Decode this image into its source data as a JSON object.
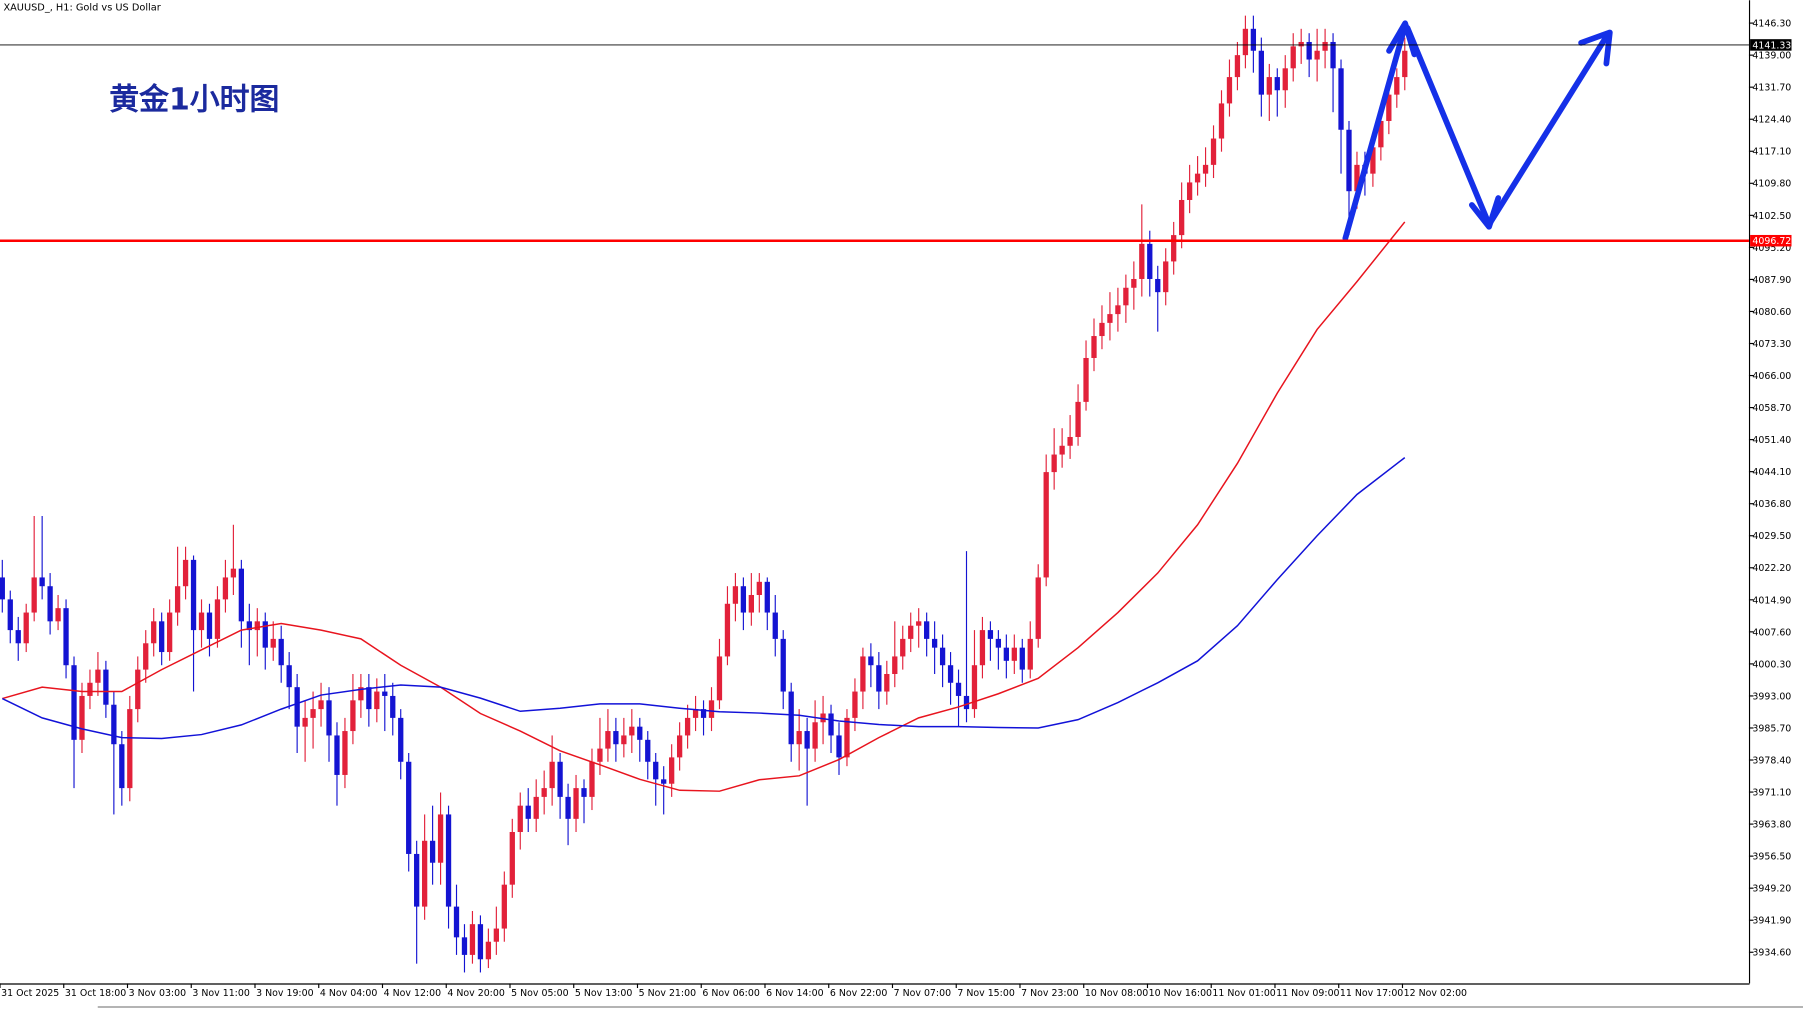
{
  "chart_data": {
    "type": "candlestick",
    "header": "XAUUSD_, H1:  Gold vs US Dollar",
    "title": "黄金1小时图",
    "up_color": "#e2213a",
    "down_color": "#1414d2",
    "ylim": [
      3927.5,
      4151.5
    ],
    "yticks": [
      {
        "value": 4146.3,
        "label": "4146.30"
      },
      {
        "value": 4139,
        "label": "4139.00"
      },
      {
        "value": 4131.7,
        "label": "4131.70"
      },
      {
        "value": 4124.4,
        "label": "4124.40"
      },
      {
        "value": 4117.1,
        "label": "4117.10"
      },
      {
        "value": 4109.8,
        "label": "4109.80"
      },
      {
        "value": 4102.5,
        "label": "4102.50"
      },
      {
        "value": 4095.2,
        "label": "4095.20"
      },
      {
        "value": 4087.9,
        "label": "4087.90"
      },
      {
        "value": 4080.6,
        "label": "4080.60"
      },
      {
        "value": 4073.3,
        "label": "4073.30"
      },
      {
        "value": 4066,
        "label": "4066.00"
      },
      {
        "value": 4058.7,
        "label": "4058.70"
      },
      {
        "value": 4051.4,
        "label": "4051.40"
      },
      {
        "value": 4044.1,
        "label": "4044.10"
      },
      {
        "value": 4036.8,
        "label": "4036.80"
      },
      {
        "value": 4029.5,
        "label": "4029.50"
      },
      {
        "value": 4022.2,
        "label": "4022.20"
      },
      {
        "value": 4014.9,
        "label": "4014.90"
      },
      {
        "value": 4007.6,
        "label": "4007.60"
      },
      {
        "value": 4000.3,
        "label": "4000.30"
      },
      {
        "value": 3993,
        "label": "3993.00"
      },
      {
        "value": 3985.7,
        "label": "3985.70"
      },
      {
        "value": 3978.4,
        "label": "3978.40"
      },
      {
        "value": 3971.1,
        "label": "3971.10"
      },
      {
        "value": 3963.8,
        "label": "3963.80"
      },
      {
        "value": 3956.5,
        "label": "3956.50"
      },
      {
        "value": 3949.2,
        "label": "3949.20"
      },
      {
        "value": 3941.9,
        "label": "3941.90"
      },
      {
        "value": 3934.6,
        "label": "3934.60"
      }
    ],
    "categories": [
      "31 Oct 2025",
      null,
      null,
      null,
      null,
      null,
      null,
      null,
      "31 Oct 18:00",
      null,
      null,
      null,
      null,
      null,
      null,
      null,
      "3 Nov 03:00",
      null,
      null,
      null,
      null,
      null,
      null,
      null,
      "3 Nov 11:00",
      null,
      null,
      null,
      null,
      null,
      null,
      null,
      "3 Nov 19:00",
      null,
      null,
      null,
      null,
      null,
      null,
      null,
      "4 Nov 04:00",
      null,
      null,
      null,
      null,
      null,
      null,
      null,
      "4 Nov 12:00",
      null,
      null,
      null,
      null,
      null,
      null,
      null,
      "4 Nov 20:00",
      null,
      null,
      null,
      null,
      null,
      null,
      null,
      "5 Nov 05:00",
      null,
      null,
      null,
      null,
      null,
      null,
      null,
      "5 Nov 13:00",
      null,
      null,
      null,
      null,
      null,
      null,
      null,
      "5 Nov 21:00",
      null,
      null,
      null,
      null,
      null,
      null,
      null,
      "6 Nov 06:00",
      null,
      null,
      null,
      null,
      null,
      null,
      null,
      "6 Nov 14:00",
      null,
      null,
      null,
      null,
      null,
      null,
      null,
      "6 Nov 22:00",
      null,
      null,
      null,
      null,
      null,
      null,
      null,
      "7 Nov 07:00",
      null,
      null,
      null,
      null,
      null,
      null,
      null,
      "7 Nov 15:00",
      null,
      null,
      null,
      null,
      null,
      null,
      null,
      "7 Nov 23:00",
      null,
      null,
      null,
      null,
      null,
      null,
      null,
      "10 Nov 08:00",
      null,
      null,
      null,
      null,
      null,
      null,
      null,
      "10 Nov 16:00",
      null,
      null,
      null,
      null,
      null,
      null,
      null,
      "11 Nov 01:00",
      null,
      null,
      null,
      null,
      null,
      null,
      null,
      "11 Nov 09:00",
      null,
      null,
      null,
      null,
      null,
      null,
      null,
      "11 Nov 17:00",
      null,
      null,
      null,
      null,
      null,
      null,
      null,
      "12 Nov 02:00"
    ],
    "open": [
      4020,
      4015,
      4008,
      4005,
      4012,
      4020,
      4018,
      4010,
      4013,
      4000,
      3983,
      3993,
      3996,
      3999,
      3991,
      3982,
      3972,
      3990,
      3999,
      4005,
      4010,
      4003,
      4012,
      4018,
      4024,
      4008,
      4012,
      4006,
      4015,
      4020,
      4022,
      4010,
      4008,
      4010,
      4004,
      4006,
      4000,
      3995,
      3986,
      3988,
      3990,
      3992,
      3984,
      3975,
      3985,
      3992,
      3995,
      3990,
      3994,
      3993,
      3988,
      3978,
      3957,
      3945,
      3960,
      3955,
      3966,
      3945,
      3938,
      3934,
      3941,
      3933,
      3937,
      3940,
      3950,
      3962,
      3968,
      3965,
      3970,
      3972,
      3978,
      3970,
      3965,
      3972,
      3970,
      3978,
      3981,
      3985,
      3982,
      3984,
      3986,
      3983,
      3978,
      3974,
      3973,
      3979,
      3984,
      3988,
      3990,
      3988,
      3992,
      4002,
      4014,
      4018,
      4012,
      4016,
      4019,
      4012,
      4006,
      3994,
      3982,
      3985,
      3981,
      3987,
      3989,
      3984,
      3979,
      3988,
      3994,
      4002,
      4000,
      3994,
      3998,
      4002,
      4006,
      4009,
      4010,
      4006,
      4004,
      4000,
      3996,
      3993,
      3990,
      4000,
      4008,
      4006,
      4004,
      4001,
      4004,
      3999,
      4006,
      4020,
      4044,
      4048,
      4050,
      4052,
      4060,
      4070,
      4075,
      4078,
      4080,
      4082,
      4086,
      4088,
      4096,
      4088,
      4085,
      4092,
      4098,
      4106,
      4110,
      4112,
      4114,
      4120,
      4128,
      4134,
      4139,
      4145,
      4140,
      4130,
      4134,
      4131,
      4136,
      4141,
      4142,
      4138,
      4140,
      4142,
      4136,
      4122,
      4108,
      4114,
      4112,
      4118,
      4124,
      4130,
      4134
    ],
    "high": [
      4024,
      4017,
      4011,
      4014,
      4034,
      4034,
      4021,
      4016,
      4015,
      4002,
      3996,
      3999,
      4003,
      4001,
      3994,
      3985,
      3993,
      4002,
      4008,
      4013,
      4012,
      4015,
      4027,
      4027,
      4025,
      4015,
      4014,
      4018,
      4024,
      4032,
      4024,
      4014,
      4013,
      4012,
      4010,
      4009,
      4003,
      3998,
      3992,
      3994,
      3996,
      3995,
      3987,
      3988,
      3998,
      3998,
      3998,
      3997,
      3998,
      3996,
      3990,
      3980,
      3960,
      3966,
      3968,
      3971,
      3968,
      3950,
      3941,
      3944,
      3943,
      3940,
      3945,
      3953,
      3965,
      3971,
      3972,
      3974,
      3976,
      3984,
      3980,
      3973,
      3975,
      3974,
      3981,
      3988,
      3990,
      3988,
      3988,
      3990,
      3988,
      3985,
      3980,
      3977,
      3982,
      3987,
      3991,
      3993,
      3992,
      3995,
      4006,
      4018,
      4021,
      4020,
      4021,
      4021,
      4020,
      4016,
      4008,
      3996,
      3990,
      3988,
      3992,
      3993,
      3991,
      3987,
      3990,
      3997,
      4004,
      4005,
      4003,
      4001,
      4010,
      4009,
      4012,
      4013,
      4012,
      4010,
      4007,
      4003,
      3999,
      4026,
      4008,
      4011,
      4010,
      4008,
      4007,
      4007,
      4006,
      4010,
      4023,
      4048,
      4054,
      4054,
      4057,
      4064,
      4074,
      4079,
      4082,
      4085,
      4086,
      4089,
      4092,
      4105,
      4099,
      4091,
      4095,
      4101,
      4110,
      4114,
      4116,
      4118,
      4123,
      4131,
      4138,
      4142,
      4148,
      4148,
      4143,
      4137,
      4136,
      4139,
      4144,
      4145,
      4144,
      4145,
      4145,
      4144,
      4138,
      4124,
      4117,
      4117,
      4121,
      4127,
      4133,
      4136,
      4143
    ],
    "low": [
      4012,
      4005,
      4001,
      4003,
      4010,
      4015,
      4007,
      4008,
      3997,
      3972,
      3980,
      3990,
      3993,
      3988,
      3966,
      3968,
      3969,
      3987,
      3996,
      4002,
      4000,
      4001,
      4009,
      4015,
      3994,
      4004,
      4002,
      4004,
      4012,
      4016,
      4004,
      4000,
      4002,
      3999,
      4001,
      3996,
      3990,
      3980,
      3978,
      3981,
      3986,
      3978,
      3968,
      3972,
      3982,
      3988,
      3986,
      3987,
      3985,
      3984,
      3974,
      3953,
      3932,
      3942,
      3950,
      3950,
      3940,
      3934,
      3930,
      3932,
      3930,
      3931,
      3934,
      3937,
      3947,
      3958,
      3962,
      3962,
      3966,
      3968,
      3965,
      3959,
      3962,
      3964,
      3967,
      3975,
      3978,
      3978,
      3979,
      3980,
      3978,
      3974,
      3968,
      3966,
      3970,
      3976,
      3981,
      3985,
      3984,
      3985,
      3990,
      4000,
      4010,
      4008,
      4009,
      4012,
      4008,
      4002,
      3990,
      3978,
      3976,
      3968,
      3978,
      3982,
      3980,
      3975,
      3977,
      3985,
      3990,
      3995,
      3990,
      3991,
      3995,
      3999,
      4003,
      4004,
      4002,
      3998,
      3995,
      3991,
      3986,
      3987,
      3988,
      3997,
      4001,
      3999,
      3997,
      3998,
      3996,
      3997,
      4004,
      4018,
      4040,
      4045,
      4047,
      4050,
      4058,
      4067,
      4072,
      4074,
      4076,
      4078,
      4081,
      4084,
      4084,
      4076,
      4082,
      4089,
      4095,
      4103,
      4107,
      4109,
      4111,
      4117,
      4125,
      4131,
      4136,
      4135,
      4125,
      4124,
      4125,
      4127,
      4133,
      4137,
      4134,
      4133,
      4136,
      4126,
      4112,
      4098,
      4104,
      4107,
      4109,
      4115,
      4121,
      4127,
      4131
    ],
    "close": [
      4015,
      4008,
      4005,
      4012,
      4020,
      4018,
      4010,
      4013,
      4000,
      3983,
      3993,
      3996,
      3999,
      3991,
      3982,
      3972,
      3990,
      3999,
      4005,
      4010,
      4003,
      4012,
      4018,
      4024,
      4008,
      4012,
      4006,
      4015,
      4020,
      4022,
      4010,
      4008,
      4010,
      4004,
      4006,
      4000,
      3995,
      3986,
      3988,
      3990,
      3992,
      3984,
      3975,
      3985,
      3992,
      3995,
      3990,
      3994,
      3993,
      3988,
      3978,
      3957,
      3945,
      3960,
      3955,
      3966,
      3945,
      3938,
      3934,
      3941,
      3933,
      3937,
      3940,
      3950,
      3962,
      3968,
      3965,
      3970,
      3972,
      3978,
      3970,
      3965,
      3972,
      3970,
      3978,
      3981,
      3985,
      3982,
      3984,
      3986,
      3983,
      3978,
      3974,
      3973,
      3979,
      3984,
      3988,
      3990,
      3988,
      3992,
      4002,
      4014,
      4018,
      4012,
      4016,
      4019,
      4012,
      4006,
      3994,
      3982,
      3985,
      3981,
      3987,
      3989,
      3984,
      3979,
      3988,
      3994,
      4002,
      4000,
      3994,
      3998,
      4002,
      4006,
      4009,
      4010,
      4006,
      4004,
      4000,
      3996,
      3993,
      3990,
      4000,
      4008,
      4006,
      4004,
      4001,
      4004,
      3999,
      4006,
      4020,
      4044,
      4048,
      4050,
      4052,
      4060,
      4070,
      4075,
      4078,
      4080,
      4082,
      4086,
      4088,
      4096,
      4088,
      4085,
      4092,
      4098,
      4106,
      4110,
      4112,
      4114,
      4120,
      4128,
      4134,
      4139,
      4145,
      4140,
      4130,
      4134,
      4131,
      4136,
      4141,
      4142,
      4138,
      4140,
      4142,
      4136,
      4122,
      4108,
      4114,
      4112,
      4118,
      4124,
      4130,
      4134,
      4140
    ],
    "series": [
      {
        "color": "#e8141e",
        "x": [
          0,
          5,
          10,
          15,
          20,
          25,
          30,
          35,
          40,
          45,
          50,
          55,
          60,
          65,
          70,
          75,
          80,
          85,
          90,
          95,
          100,
          105,
          110,
          115,
          120,
          125,
          130,
          135,
          140,
          145,
          150,
          155,
          160,
          165,
          170,
          176
        ],
        "values": [
          3992.4,
          3995,
          3994,
          3994,
          3999,
          4003.5,
          4008,
          4009.5,
          4008,
          4006,
          4000,
          3995,
          3989,
          3985,
          3980.5,
          3977.3,
          3974,
          3971.5,
          3971.3,
          3973.9,
          3974.8,
          3978.5,
          3983.5,
          3988,
          3990.5,
          3993.5,
          3997,
          4004,
          4012,
          4021,
          4032,
          4046,
          4062,
          4076.5,
          4087.4,
          4101
        ]
      },
      {
        "color": "#1212d8",
        "x": [
          0,
          5,
          10,
          15,
          20,
          25,
          30,
          35,
          40,
          45,
          50,
          55,
          60,
          65,
          70,
          75,
          80,
          85,
          90,
          95,
          100,
          105,
          110,
          115,
          120,
          125,
          130,
          135,
          140,
          145,
          150,
          155,
          160,
          165,
          170,
          176
        ],
        "values": [
          3992.4,
          3988,
          3985.5,
          3983.5,
          3983.3,
          3984.2,
          3986.4,
          3990,
          3993.2,
          3994.5,
          3995.5,
          3995,
          3992.5,
          3989.5,
          3990.2,
          3991.2,
          3991.2,
          3990.2,
          3989.4,
          3989.1,
          3988.6,
          3987.3,
          3986.5,
          3986,
          3986,
          3985.8,
          3985.7,
          3987.6,
          3991.5,
          3996,
          4001,
          4009,
          4019.5,
          4029.5,
          4038.9,
          4047.3
        ]
      }
    ],
    "hlines": [
      {
        "value": 4141.33,
        "color": "#000000"
      },
      {
        "value": 4096.72,
        "color": "#ff0000"
      }
    ]
  }
}
